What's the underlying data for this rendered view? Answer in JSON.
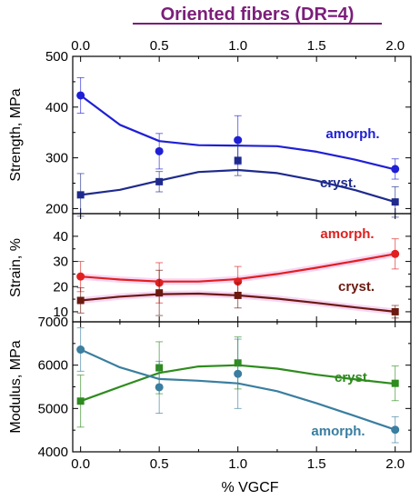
{
  "title": "Oriented fibers (DR=4)",
  "title_color": "#7B1E7A",
  "x_label": "% VGCF",
  "x_ticks": [
    "0.0",
    "0.5",
    "1.0",
    "1.5",
    "2.0"
  ],
  "x_tick_values": [
    0,
    0.5,
    1.0,
    1.5,
    2.0
  ],
  "xlim": [
    -0.05,
    2.1
  ],
  "chart_data": [
    {
      "type": "line",
      "ylabel": "Strength, MPa",
      "ylim": [
        190,
        500
      ],
      "y_ticks": [
        200,
        300,
        400,
        500
      ],
      "x": [
        0,
        0.5,
        1.0,
        2.0
      ],
      "series": [
        {
          "name": "amorph.",
          "color": "#1F1FD6",
          "marker": "circle",
          "values": [
            423,
            313,
            335,
            278
          ],
          "err": [
            35,
            35,
            48,
            20
          ],
          "fit": [
            [
              0,
              423
            ],
            [
              0.25,
              365
            ],
            [
              0.5,
              333
            ],
            [
              0.75,
              325
            ],
            [
              1.0,
              324
            ],
            [
              1.25,
              323
            ],
            [
              1.5,
              312
            ],
            [
              1.75,
              296
            ],
            [
              2.0,
              277
            ]
          ]
        },
        {
          "name": "cryst.",
          "color": "#1E2A8C",
          "marker": "square",
          "values": [
            227,
            253,
            295,
            213
          ],
          "err": [
            42,
            20,
            30,
            30
          ],
          "fit": [
            [
              0,
              227
            ],
            [
              0.25,
              237
            ],
            [
              0.5,
              255
            ],
            [
              0.75,
              272
            ],
            [
              1.0,
              276
            ],
            [
              1.25,
              270
            ],
            [
              1.5,
              255
            ],
            [
              1.75,
              236
            ],
            [
              2.0,
              213
            ]
          ]
        }
      ]
    },
    {
      "type": "line",
      "ylabel": "Strain, %",
      "ylim": [
        6,
        49
      ],
      "y_ticks": [
        10,
        20,
        30,
        40
      ],
      "x": [
        0,
        0.5,
        1.0,
        2.0
      ],
      "series": [
        {
          "name": "amorph.",
          "color": "#E02020",
          "marker": "circle",
          "values": [
            24,
            21.5,
            22,
            33
          ],
          "err": [
            6,
            8,
            6,
            6
          ],
          "fit": [
            [
              0,
              24
            ],
            [
              0.25,
              22.8
            ],
            [
              0.5,
              22
            ],
            [
              0.75,
              22
            ],
            [
              1.0,
              23
            ],
            [
              1.25,
              25
            ],
            [
              1.5,
              27.5
            ],
            [
              1.75,
              30.2
            ],
            [
              2.0,
              33
            ]
          ]
        },
        {
          "name": "cryst.",
          "color": "#6B1A10",
          "marker": "square",
          "values": [
            14.5,
            17.5,
            16.5,
            10
          ],
          "err": [
            5,
            9,
            5,
            2.5
          ],
          "fit": [
            [
              0,
              14.5
            ],
            [
              0.25,
              16
            ],
            [
              0.5,
              17
            ],
            [
              0.75,
              17.2
            ],
            [
              1.0,
              16.5
            ],
            [
              1.25,
              15.2
            ],
            [
              1.5,
              13.5
            ],
            [
              1.75,
              11.7
            ],
            [
              2.0,
              10
            ]
          ]
        }
      ]
    },
    {
      "type": "line",
      "ylabel": "Modulus, MPa",
      "ylim": [
        4000,
        7000
      ],
      "y_ticks": [
        4000,
        5000,
        6000,
        7000
      ],
      "x": [
        0,
        0.5,
        1.0,
        2.0
      ],
      "series": [
        {
          "name": "cryst.",
          "color": "#2E8B1E",
          "marker": "square",
          "values": [
            5170,
            5940,
            6050,
            5580
          ],
          "err": [
            600,
            600,
            600,
            400
          ],
          "fit": [
            [
              0,
              5170
            ],
            [
              0.25,
              5500
            ],
            [
              0.5,
              5820
            ],
            [
              0.75,
              5970
            ],
            [
              1.0,
              6000
            ],
            [
              1.25,
              5920
            ],
            [
              1.5,
              5780
            ],
            [
              1.75,
              5670
            ],
            [
              2.0,
              5570
            ]
          ]
        },
        {
          "name": "amorph.",
          "color": "#3A7EA0",
          "marker": "circle",
          "values": [
            6360,
            5490,
            5800,
            4510
          ],
          "err": [
            500,
            600,
            800,
            300
          ],
          "fit": [
            [
              0,
              6360
            ],
            [
              0.25,
              5950
            ],
            [
              0.5,
              5680
            ],
            [
              0.75,
              5640
            ],
            [
              1.0,
              5580
            ],
            [
              1.25,
              5400
            ],
            [
              1.5,
              5120
            ],
            [
              1.75,
              4820
            ],
            [
              2.0,
              4510
            ]
          ]
        }
      ]
    }
  ]
}
